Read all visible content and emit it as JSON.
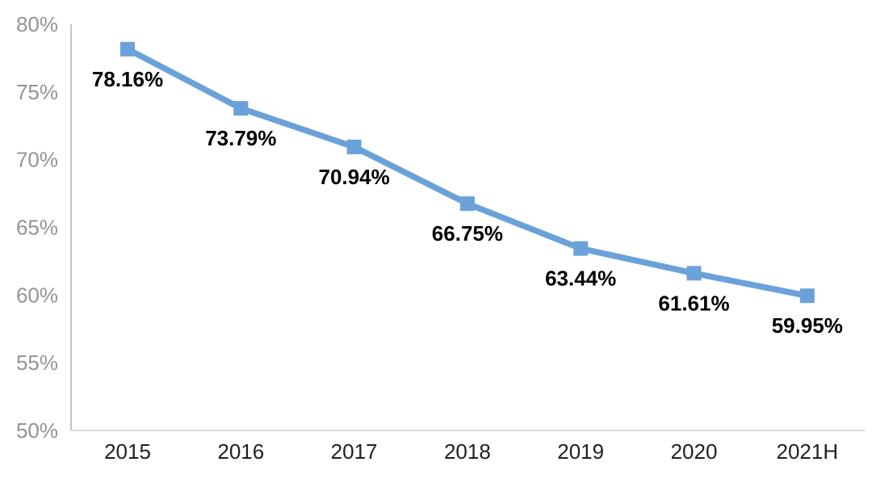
{
  "chart_data": {
    "type": "line",
    "title": "",
    "xlabel": "",
    "ylabel": "",
    "categories": [
      "2015",
      "2016",
      "2017",
      "2018",
      "2019",
      "2020",
      "2021H"
    ],
    "values": [
      78.16,
      73.79,
      70.94,
      66.75,
      63.44,
      61.61,
      59.95
    ],
    "data_labels": [
      "78.16%",
      "73.79%",
      "70.94%",
      "66.75%",
      "63.44%",
      "61.61%",
      "59.95%"
    ],
    "y_tick_values": [
      50,
      55,
      60,
      65,
      70,
      75,
      80
    ],
    "y_tick_labels": [
      "50%",
      "55%",
      "60%",
      "65%",
      "70%",
      "75%",
      "80%"
    ],
    "ylim": [
      50,
      80
    ],
    "grid": false,
    "legend_position": "none",
    "marker": "square",
    "data_label_position": "below",
    "colors": {
      "line": "#6BA1D9",
      "marker": "#6BA1D9",
      "data_label": "#000000",
      "y_tick_label": "#949494",
      "x_tick_label": "#212121",
      "y_axis_line": "#c3c3c3",
      "x_axis_line": "#dcdcdc",
      "background": "#ffffff"
    }
  }
}
